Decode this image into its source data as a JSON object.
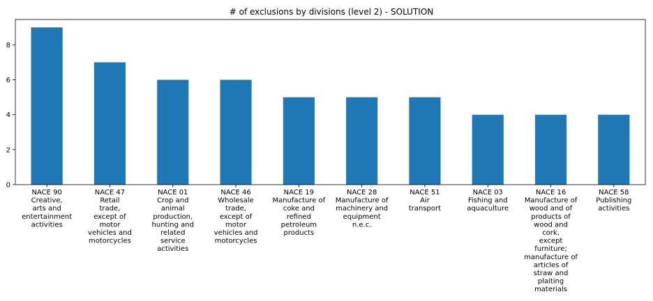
{
  "chart_data": {
    "type": "bar",
    "title": "# of exclusions by divisions (level 2) - SOLUTION",
    "xlabel": "",
    "ylabel": "",
    "ylim": [
      0,
      9.45
    ],
    "yticks": [
      0,
      2,
      4,
      6,
      8
    ],
    "grid": false,
    "bar_color": "#1f77b4",
    "categories": [
      "NACE 90 Creative, arts and entertainment activities",
      "NACE 47 Retail trade, except of motor vehicles and motorcycles",
      "NACE 01 Crop and animal production, hunting and related service activities",
      "NACE 46 Wholesale trade, except of motor vehicles and motorcycles",
      "NACE 19 Manufacture of coke and refined petroleum products",
      "NACE 28 Manufacture of machinery and equipment n.e.c.",
      "NACE 51 Air transport",
      "NACE 03 Fishing and aquaculture",
      "NACE 16 Manufacture of wood and of products of wood and cork, except furniture; manufacture of articles of straw and plaiting materials",
      "NACE 58 Publishing activities"
    ],
    "category_lines": [
      [
        "NACE 90",
        "Creative,",
        "arts and",
        "entertainment",
        "activities"
      ],
      [
        "NACE 47",
        "Retail",
        "trade,",
        "except of",
        "motor",
        "vehicles and",
        "motorcycles"
      ],
      [
        "NACE 01",
        "Crop and",
        "animal",
        "production,",
        "hunting and",
        "related",
        "service",
        "activities"
      ],
      [
        "NACE 46",
        "Wholesale",
        "trade,",
        "except of",
        "motor",
        "vehicles and",
        "motorcycles"
      ],
      [
        "NACE 19",
        "Manufacture of",
        "coke and",
        "refined",
        "petroleum",
        "products"
      ],
      [
        "NACE 28",
        "Manufacture of",
        "machinery and",
        "equipment",
        "n.e.c."
      ],
      [
        "NACE 51",
        "Air",
        "transport"
      ],
      [
        "NACE 03",
        "Fishing and",
        "aquaculture"
      ],
      [
        "NACE 16",
        "Manufacture of",
        "wood and of",
        "products of",
        "wood and",
        "cork,",
        "except",
        "furniture;",
        "manufacture of",
        "articles of",
        "straw and",
        "plaiting",
        "materials"
      ],
      [
        "NACE 58",
        "Publishing",
        "activities"
      ]
    ],
    "values": [
      9,
      7,
      6,
      6,
      5,
      5,
      5,
      4,
      4,
      4
    ]
  }
}
